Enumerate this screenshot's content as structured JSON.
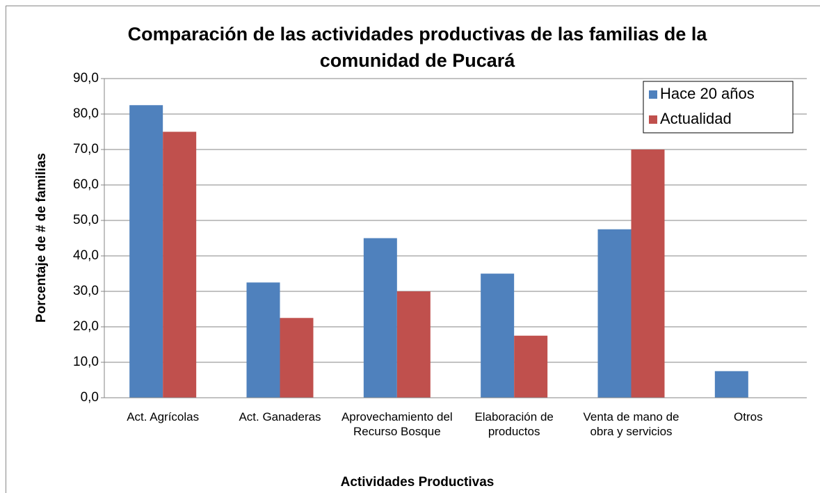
{
  "chart_data": {
    "type": "bar",
    "title": "Comparación de las actividades productivas de las familias de la comunidad de Pucará",
    "categories": [
      "Act. Agrícolas",
      "Act. Ganaderas",
      "Aprovechamiento del Recurso Bosque",
      "Elaboración de productos",
      "Venta de mano de obra y servicios",
      "Otros"
    ],
    "series": [
      {
        "name": "Hace 20 años",
        "color": "#4f81bd",
        "values": [
          82.5,
          32.5,
          45,
          35,
          47.5,
          7.5
        ]
      },
      {
        "name": "Actualidad",
        "color": "#c0504d",
        "values": [
          75,
          22.5,
          30,
          17.5,
          70,
          0
        ]
      }
    ],
    "ylim": [
      0,
      90
    ],
    "yticks": [
      {
        "value": 0,
        "label": "0,0"
      },
      {
        "value": 10,
        "label": "10,0"
      },
      {
        "value": 20,
        "label": "20,0"
      },
      {
        "value": 30,
        "label": "30,0"
      },
      {
        "value": 40,
        "label": "40,0"
      },
      {
        "value": 50,
        "label": "50,0"
      },
      {
        "value": 60,
        "label": "60,0"
      },
      {
        "value": 70,
        "label": "70,0"
      },
      {
        "value": 80,
        "label": "80,0"
      },
      {
        "value": 90,
        "label": "90,0"
      }
    ],
    "xlabel": "Actividades Productivas",
    "ylabel": "Porcentaje de # de familias",
    "grid": true,
    "legend": "top-right"
  }
}
